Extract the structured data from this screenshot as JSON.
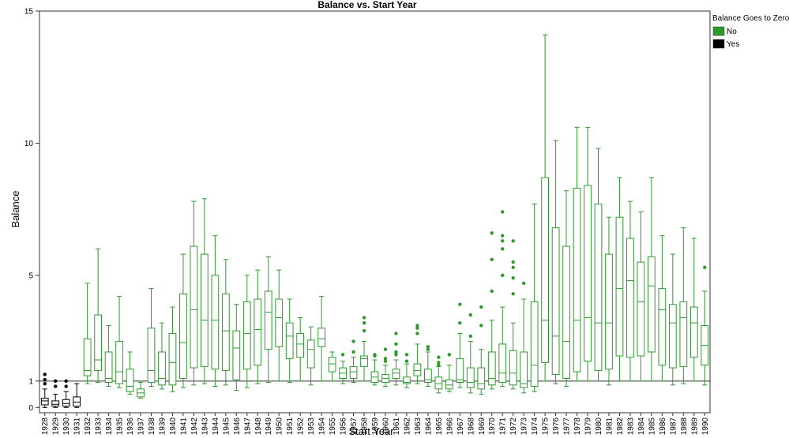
{
  "chart_data": {
    "type": "boxplot",
    "title": "Balance vs. Start Year",
    "xlabel": "Start Year",
    "ylabel": "Balance",
    "ylim": [
      -0.2,
      15
    ],
    "yticks": [
      0,
      1,
      5,
      10,
      15
    ],
    "reference_line": 1,
    "legend": {
      "title": "Balance Goes to Zero",
      "placement": "top-right",
      "items": [
        {
          "label": "No",
          "color": "#2e9a2e"
        },
        {
          "label": "Yes",
          "color": "#000000"
        }
      ]
    },
    "boxes": [
      {
        "x": "1928",
        "min": 0.0,
        "q1": 0.1,
        "med": 0.25,
        "q3": 0.35,
        "max": 0.7,
        "outliers": [
          0.9,
          1.05,
          1.25
        ],
        "group": "Yes"
      },
      {
        "x": "1929",
        "min": 0.0,
        "q1": 0.05,
        "med": 0.12,
        "q3": 0.25,
        "max": 0.5,
        "outliers": [
          0.8,
          1.0
        ],
        "group": "Yes"
      },
      {
        "x": "1930",
        "min": 0.0,
        "q1": 0.05,
        "med": 0.15,
        "q3": 0.3,
        "max": 0.6,
        "outliers": [
          0.8,
          1.0
        ],
        "group": "Yes"
      },
      {
        "x": "1931",
        "min": 0.0,
        "q1": 0.05,
        "med": 0.2,
        "q3": 0.4,
        "max": 0.9,
        "outliers": [],
        "group": "Yes"
      },
      {
        "x": "1932",
        "min": 0.9,
        "q1": 1.2,
        "med": 1.4,
        "q3": 2.6,
        "max": 4.7,
        "outliers": [],
        "group": "No"
      },
      {
        "x": "1933",
        "min": 0.95,
        "q1": 1.4,
        "med": 1.8,
        "q3": 3.5,
        "max": 6.0,
        "outliers": [],
        "group": "No"
      },
      {
        "x": "1934",
        "min": 0.8,
        "q1": 0.95,
        "med": 1.1,
        "q3": 2.1,
        "max": 3.1,
        "outliers": [],
        "group": "No"
      },
      {
        "x": "1935",
        "min": 0.75,
        "q1": 0.9,
        "med": 1.35,
        "q3": 2.5,
        "max": 4.2,
        "outliers": [],
        "group": "No"
      },
      {
        "x": "1936",
        "min": 0.5,
        "q1": 0.6,
        "med": 0.8,
        "q3": 1.45,
        "max": 2.1,
        "outliers": [],
        "group": "No"
      },
      {
        "x": "1937",
        "min": 0.35,
        "q1": 0.4,
        "med": 0.55,
        "q3": 0.7,
        "max": 0.95,
        "outliers": [],
        "group": "No"
      },
      {
        "x": "1938",
        "min": 0.8,
        "q1": 0.95,
        "med": 1.4,
        "q3": 3.0,
        "max": 4.5,
        "outliers": [],
        "group": "No"
      },
      {
        "x": "1939",
        "min": 0.7,
        "q1": 0.85,
        "med": 1.1,
        "q3": 2.1,
        "max": 3.2,
        "outliers": [],
        "group": "No"
      },
      {
        "x": "1940",
        "min": 0.6,
        "q1": 0.85,
        "med": 1.7,
        "q3": 2.8,
        "max": 3.8,
        "outliers": [],
        "group": "No"
      },
      {
        "x": "1941",
        "min": 0.75,
        "q1": 1.1,
        "med": 2.45,
        "q3": 4.3,
        "max": 5.8,
        "outliers": [],
        "group": "No"
      },
      {
        "x": "1942",
        "min": 0.85,
        "q1": 1.5,
        "med": 3.7,
        "q3": 6.1,
        "max": 7.8,
        "outliers": [],
        "group": "No"
      },
      {
        "x": "1943",
        "min": 0.9,
        "q1": 1.55,
        "med": 3.3,
        "q3": 5.8,
        "max": 7.9,
        "outliers": [],
        "group": "No"
      },
      {
        "x": "1944",
        "min": 0.8,
        "q1": 1.45,
        "med": 3.3,
        "q3": 5.0,
        "max": 6.5,
        "outliers": [],
        "group": "No"
      },
      {
        "x": "1945",
        "min": 0.85,
        "q1": 1.4,
        "med": 2.9,
        "q3": 4.3,
        "max": 5.6,
        "outliers": [],
        "group": "No"
      },
      {
        "x": "1946",
        "min": 0.65,
        "q1": 1.05,
        "med": 2.25,
        "q3": 2.9,
        "max": 3.9,
        "outliers": [],
        "group": "No"
      },
      {
        "x": "1947",
        "min": 0.75,
        "q1": 1.45,
        "med": 2.8,
        "q3": 4.0,
        "max": 5.0,
        "outliers": [],
        "group": "No"
      },
      {
        "x": "1948",
        "min": 0.9,
        "q1": 1.6,
        "med": 2.95,
        "q3": 4.1,
        "max": 5.2,
        "outliers": [],
        "group": "No"
      },
      {
        "x": "1949",
        "min": 0.95,
        "q1": 2.2,
        "med": 3.6,
        "q3": 4.4,
        "max": 5.7,
        "outliers": [],
        "group": "No"
      },
      {
        "x": "1950",
        "min": 1.0,
        "q1": 2.3,
        "med": 3.4,
        "q3": 4.1,
        "max": 5.2,
        "outliers": [],
        "group": "No"
      },
      {
        "x": "1951",
        "min": 0.95,
        "q1": 1.85,
        "med": 2.7,
        "q3": 3.2,
        "max": 4.1,
        "outliers": [],
        "group": "No"
      },
      {
        "x": "1952",
        "min": 1.0,
        "q1": 1.9,
        "med": 2.4,
        "q3": 2.8,
        "max": 3.4,
        "outliers": [],
        "group": "No"
      },
      {
        "x": "1953",
        "min": 0.85,
        "q1": 1.5,
        "med": 2.2,
        "q3": 2.55,
        "max": 3.05,
        "outliers": [],
        "group": "No"
      },
      {
        "x": "1954",
        "min": 1.0,
        "q1": 2.3,
        "med": 2.6,
        "q3": 3.0,
        "max": 4.2,
        "outliers": [],
        "group": "No"
      },
      {
        "x": "1955",
        "min": 1.0,
        "q1": 1.35,
        "med": 1.65,
        "q3": 1.9,
        "max": 2.1,
        "outliers": [],
        "group": "No"
      },
      {
        "x": "1956",
        "min": 0.9,
        "q1": 1.1,
        "med": 1.3,
        "q3": 1.5,
        "max": 1.75,
        "outliers": [
          2.0
        ],
        "group": "No"
      },
      {
        "x": "1957",
        "min": 0.95,
        "q1": 1.1,
        "med": 1.35,
        "q3": 1.55,
        "max": 1.9,
        "outliers": [
          2.1,
          2.5
        ],
        "group": "No"
      },
      {
        "x": "1958",
        "min": 1.0,
        "q1": 1.55,
        "med": 1.85,
        "q3": 1.95,
        "max": 2.5,
        "outliers": [
          2.9,
          3.2,
          3.4
        ],
        "group": "No"
      },
      {
        "x": "1959",
        "min": 0.85,
        "q1": 0.95,
        "med": 1.15,
        "q3": 1.35,
        "max": 1.8,
        "outliers": [
          1.95,
          2.0
        ],
        "group": "No"
      },
      {
        "x": "1960",
        "min": 0.8,
        "q1": 0.95,
        "med": 1.1,
        "q3": 1.25,
        "max": 1.6,
        "outliers": [
          1.75,
          1.85,
          2.2
        ],
        "group": "No"
      },
      {
        "x": "1961",
        "min": 0.85,
        "q1": 1.1,
        "med": 1.3,
        "q3": 1.45,
        "max": 1.8,
        "outliers": [
          2.0,
          2.1,
          2.4,
          2.8
        ],
        "group": "No"
      },
      {
        "x": "1962",
        "min": 0.75,
        "q1": 0.9,
        "med": 0.95,
        "q3": 1.15,
        "max": 1.65,
        "outliers": [
          1.75,
          2.0
        ],
        "group": "No"
      },
      {
        "x": "1963",
        "min": 0.9,
        "q1": 1.2,
        "med": 1.4,
        "q3": 1.65,
        "max": 2.4,
        "outliers": [
          2.8,
          3.0,
          3.1
        ],
        "group": "No"
      },
      {
        "x": "1964",
        "min": 0.8,
        "q1": 0.95,
        "med": 1.05,
        "q3": 1.45,
        "max": 2.1,
        "outliers": [
          2.2,
          2.3
        ],
        "group": "No"
      },
      {
        "x": "1965",
        "min": 0.55,
        "q1": 0.7,
        "med": 0.9,
        "q3": 1.15,
        "max": 1.55,
        "outliers": [
          1.6,
          1.7,
          1.9
        ],
        "group": "No"
      },
      {
        "x": "1966",
        "min": 0.6,
        "q1": 0.7,
        "med": 0.85,
        "q3": 1.05,
        "max": 1.6,
        "outliers": [
          2.0
        ],
        "group": "No"
      },
      {
        "x": "1967",
        "min": 0.75,
        "q1": 0.95,
        "med": 1.05,
        "q3": 1.85,
        "max": 2.8,
        "outliers": [
          3.2,
          3.9
        ],
        "group": "No"
      },
      {
        "x": "1968",
        "min": 0.55,
        "q1": 0.75,
        "med": 0.95,
        "q3": 1.5,
        "max": 2.5,
        "outliers": [
          2.7,
          3.5
        ],
        "group": "No"
      },
      {
        "x": "1969",
        "min": 0.5,
        "q1": 0.7,
        "med": 0.9,
        "q3": 1.5,
        "max": 2.2,
        "outliers": [
          3.1,
          3.8
        ],
        "group": "No"
      },
      {
        "x": "1970",
        "min": 0.7,
        "q1": 0.85,
        "med": 1.1,
        "q3": 2.1,
        "max": 3.3,
        "outliers": [
          4.4,
          5.6,
          6.6
        ],
        "group": "No"
      },
      {
        "x": "1971",
        "min": 0.8,
        "q1": 0.95,
        "med": 1.3,
        "q3": 2.4,
        "max": 3.8,
        "outliers": [
          5.0,
          6.0,
          6.3,
          6.5,
          7.4
        ],
        "group": "No"
      },
      {
        "x": "1972",
        "min": 0.7,
        "q1": 0.85,
        "med": 1.3,
        "q3": 2.15,
        "max": 3.2,
        "outliers": [
          4.3,
          4.9,
          5.3,
          5.5,
          6.3
        ],
        "group": "No"
      },
      {
        "x": "1973",
        "min": 0.55,
        "q1": 0.75,
        "med": 0.9,
        "q3": 2.1,
        "max": 4.1,
        "outliers": [
          4.7
        ],
        "group": "No"
      },
      {
        "x": "1974",
        "min": 0.6,
        "q1": 0.8,
        "med": 1.6,
        "q3": 4.0,
        "max": 7.7,
        "outliers": [],
        "group": "No"
      },
      {
        "x": "1975",
        "min": 1.0,
        "q1": 1.7,
        "med": 3.3,
        "q3": 8.7,
        "max": 14.1,
        "outliers": [],
        "group": "No"
      },
      {
        "x": "1976",
        "min": 0.9,
        "q1": 1.25,
        "med": 2.7,
        "q3": 6.8,
        "max": 10.1,
        "outliers": [],
        "group": "No"
      },
      {
        "x": "1977",
        "min": 0.8,
        "q1": 1.1,
        "med": 2.5,
        "q3": 6.1,
        "max": 8.2,
        "outliers": [],
        "group": "No"
      },
      {
        "x": "1978",
        "min": 1.0,
        "q1": 1.35,
        "med": 3.3,
        "q3": 8.3,
        "max": 10.6,
        "outliers": [],
        "group": "No"
      },
      {
        "x": "1979",
        "min": 1.0,
        "q1": 1.75,
        "med": 3.4,
        "q3": 8.4,
        "max": 10.6,
        "outliers": [],
        "group": "No"
      },
      {
        "x": "1980",
        "min": 1.0,
        "q1": 1.4,
        "med": 3.2,
        "q3": 7.7,
        "max": 9.8,
        "outliers": [],
        "group": "No"
      },
      {
        "x": "1981",
        "min": 0.85,
        "q1": 1.45,
        "med": 3.2,
        "q3": 5.8,
        "max": 7.2,
        "outliers": [],
        "group": "No"
      },
      {
        "x": "1982",
        "min": 1.0,
        "q1": 1.95,
        "med": 4.5,
        "q3": 7.2,
        "max": 8.7,
        "outliers": [],
        "group": "No"
      },
      {
        "x": "1983",
        "min": 1.0,
        "q1": 1.9,
        "med": 4.8,
        "q3": 6.4,
        "max": 7.8,
        "outliers": [],
        "group": "No"
      },
      {
        "x": "1984",
        "min": 1.0,
        "q1": 1.95,
        "med": 4.0,
        "q3": 5.5,
        "max": 7.4,
        "outliers": [],
        "group": "No"
      },
      {
        "x": "1985",
        "min": 1.0,
        "q1": 2.1,
        "med": 4.6,
        "q3": 5.7,
        "max": 8.7,
        "outliers": [],
        "group": "No"
      },
      {
        "x": "1986",
        "min": 1.0,
        "q1": 1.6,
        "med": 3.7,
        "q3": 4.5,
        "max": 6.5,
        "outliers": [],
        "group": "No"
      },
      {
        "x": "1987",
        "min": 0.85,
        "q1": 1.5,
        "med": 3.2,
        "q3": 3.9,
        "max": 5.8,
        "outliers": [],
        "group": "No"
      },
      {
        "x": "1988",
        "min": 0.9,
        "q1": 1.55,
        "med": 3.4,
        "q3": 4.0,
        "max": 6.8,
        "outliers": [],
        "group": "No"
      },
      {
        "x": "1989",
        "min": 1.0,
        "q1": 1.9,
        "med": 3.2,
        "q3": 3.8,
        "max": 6.4,
        "outliers": [],
        "group": "No"
      },
      {
        "x": "1990",
        "min": 0.85,
        "q1": 1.6,
        "med": 2.35,
        "q3": 3.1,
        "max": 4.4,
        "outliers": [
          5.3
        ],
        "group": "No"
      }
    ]
  }
}
